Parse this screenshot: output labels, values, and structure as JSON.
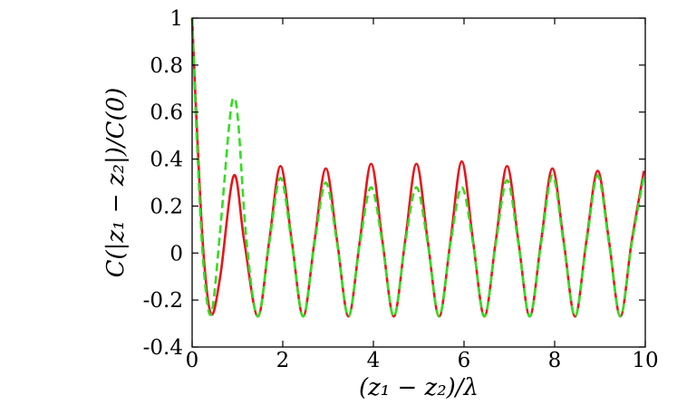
{
  "chart_data": {
    "type": "line",
    "xlabel": "(z₁ − z₂)/λ",
    "ylabel": "C(|z₁ − z₂|)/C(0)",
    "xlim": [
      0,
      10
    ],
    "ylim": [
      -0.4,
      1.0
    ],
    "grid": false,
    "x_ticks": [
      "0",
      "2",
      "4",
      "6",
      "8",
      "10"
    ],
    "y_ticks": [
      "-0.4",
      "-0.2",
      "0",
      "0.2",
      "0.4",
      "0.6",
      "0.8",
      "1"
    ],
    "series": [
      {
        "color": "#e8141b",
        "dash": "solid",
        "points": [
          [
            0.0,
            1.0
          ],
          [
            0.1,
            0.55
          ],
          [
            0.25,
            0.0
          ],
          [
            0.42,
            -0.26
          ],
          [
            0.62,
            -0.1
          ],
          [
            0.92,
            0.33
          ],
          [
            1.15,
            0.05
          ],
          [
            1.45,
            -0.27
          ],
          [
            1.7,
            0.05
          ],
          [
            1.95,
            0.37
          ],
          [
            2.2,
            0.05
          ],
          [
            2.45,
            -0.27
          ],
          [
            2.7,
            0.05
          ],
          [
            2.95,
            0.36
          ],
          [
            3.2,
            0.05
          ],
          [
            3.45,
            -0.27
          ],
          [
            3.7,
            0.05
          ],
          [
            3.95,
            0.38
          ],
          [
            4.2,
            0.05
          ],
          [
            4.45,
            -0.27
          ],
          [
            4.7,
            0.05
          ],
          [
            4.95,
            0.38
          ],
          [
            5.2,
            0.05
          ],
          [
            5.45,
            -0.27
          ],
          [
            5.7,
            0.05
          ],
          [
            5.95,
            0.39
          ],
          [
            6.2,
            0.05
          ],
          [
            6.45,
            -0.27
          ],
          [
            6.7,
            0.05
          ],
          [
            6.95,
            0.37
          ],
          [
            7.2,
            0.05
          ],
          [
            7.45,
            -0.27
          ],
          [
            7.7,
            0.05
          ],
          [
            7.95,
            0.36
          ],
          [
            8.2,
            0.05
          ],
          [
            8.45,
            -0.27
          ],
          [
            8.7,
            0.05
          ],
          [
            8.95,
            0.35
          ],
          [
            9.2,
            0.05
          ],
          [
            9.45,
            -0.27
          ],
          [
            9.7,
            0.05
          ],
          [
            9.97,
            0.35
          ]
        ]
      },
      {
        "color": "#33dd22",
        "dash": "dashed",
        "points": [
          [
            0.0,
            1.0
          ],
          [
            0.1,
            0.5
          ],
          [
            0.25,
            -0.05
          ],
          [
            0.42,
            -0.26
          ],
          [
            0.62,
            0.1
          ],
          [
            0.82,
            0.55
          ],
          [
            0.92,
            0.66
          ],
          [
            1.02,
            0.55
          ],
          [
            1.2,
            0.05
          ],
          [
            1.45,
            -0.27
          ],
          [
            1.7,
            0.04
          ],
          [
            1.95,
            0.32
          ],
          [
            2.2,
            0.04
          ],
          [
            2.45,
            -0.27
          ],
          [
            2.7,
            0.04
          ],
          [
            2.95,
            0.3
          ],
          [
            3.2,
            0.04
          ],
          [
            3.45,
            -0.27
          ],
          [
            3.7,
            0.04
          ],
          [
            3.95,
            0.28
          ],
          [
            4.2,
            0.04
          ],
          [
            4.45,
            -0.27
          ],
          [
            4.7,
            0.04
          ],
          [
            4.95,
            0.28
          ],
          [
            5.2,
            0.04
          ],
          [
            5.45,
            -0.27
          ],
          [
            5.7,
            0.04
          ],
          [
            5.95,
            0.28
          ],
          [
            6.2,
            0.04
          ],
          [
            6.45,
            -0.27
          ],
          [
            6.7,
            0.04
          ],
          [
            6.95,
            0.31
          ],
          [
            7.2,
            0.04
          ],
          [
            7.45,
            -0.27
          ],
          [
            7.7,
            0.04
          ],
          [
            7.95,
            0.33
          ],
          [
            8.2,
            0.04
          ],
          [
            8.45,
            -0.27
          ],
          [
            8.7,
            0.04
          ],
          [
            8.95,
            0.33
          ],
          [
            9.2,
            0.04
          ],
          [
            9.45,
            -0.27
          ],
          [
            9.7,
            0.04
          ],
          [
            9.97,
            0.33
          ]
        ]
      }
    ]
  }
}
